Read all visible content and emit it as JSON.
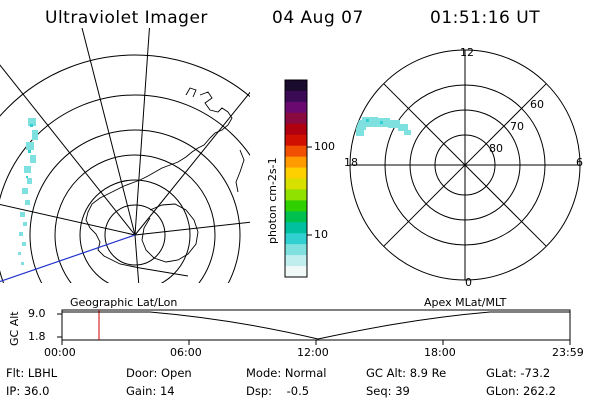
{
  "header": {
    "instrument": "Ultraviolet Imager",
    "date": "04 Aug 07",
    "time": "01:51:16 UT"
  },
  "colorbar": {
    "unit_label": "photon cm-2s-1",
    "ticks": [
      "100",
      "10"
    ],
    "colors": [
      "#1a0a2e",
      "#3a0a55",
      "#6a0a70",
      "#8a0a40",
      "#b00010",
      "#d01000",
      "#f05000",
      "#ff9a00",
      "#ffd000",
      "#d8e000",
      "#90e000",
      "#30d000",
      "#00c050",
      "#00c0a0",
      "#30d0d0",
      "#80e0e0",
      "#c0eeee",
      "#f0f8f8"
    ]
  },
  "polar_plot": {
    "mlt_labels": [
      "12",
      "18",
      "6",
      "0"
    ],
    "mlat_labels": [
      "60",
      "70",
      "80"
    ]
  },
  "timeline": {
    "left_title": "Geographic Lat/Lon",
    "right_title": "Apex MLat/MLT",
    "axis_label": "GC Alt",
    "y_ticks": [
      "9.0",
      "1.8"
    ],
    "x_ticks": [
      "00:00",
      "06:00",
      "12:00",
      "18:00",
      "23:59"
    ],
    "marker_color": "#cc0000"
  },
  "info": {
    "flt": "Flt: LBHL",
    "ip": "IP: 36.0",
    "door": "Door: Open",
    "gain": "Gain: 14",
    "mode": "Mode: Normal",
    "dsp": "Dsp:    -0.5",
    "gcalt": "GC Alt: 8.9 Re",
    "seq": "Seq: 39",
    "glat": "GLat: -73.2",
    "glon": "GLon: 262.2"
  }
}
